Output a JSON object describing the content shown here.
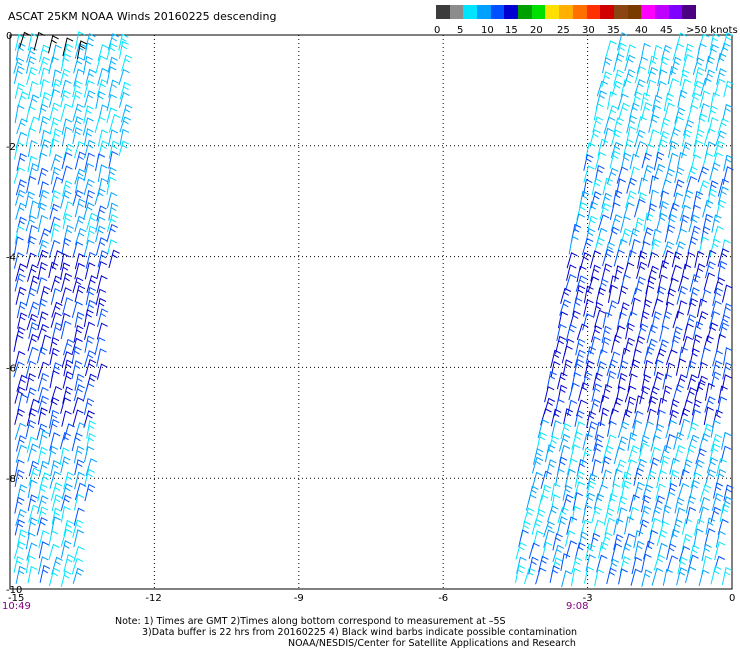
{
  "title": "ASCAT 25KM NOAA Winds 20160225 descending",
  "legend": {
    "colors": [
      "#3c3c3c",
      "#8c8c8c",
      "#00e5ff",
      "#00a0ff",
      "#0050ff",
      "#0000d0",
      "#00a000",
      "#00e000",
      "#ffe000",
      "#ffb000",
      "#ff7000",
      "#ff3000",
      "#d00000",
      "#8b4513",
      "#7a3b00",
      "#ff00ff",
      "#c000ff",
      "#8000ff",
      "#4b0082"
    ],
    "labels": [
      "0",
      "5",
      "10",
      "15",
      "20",
      "25",
      "30",
      "35",
      "40",
      "45",
      ">50 knots"
    ]
  },
  "axes": {
    "x_ticks": [
      "-15",
      "-12",
      "-9",
      "-6",
      "-3",
      "0"
    ],
    "y_ticks": [
      "0",
      "-2",
      "-4",
      "-6",
      "-8",
      "-10"
    ],
    "xlim": [
      -15,
      0
    ],
    "ylim": [
      -10,
      0
    ],
    "grid": true
  },
  "times": {
    "left": "10:49",
    "right": "9:08"
  },
  "notes": {
    "line1": "Note: 1) Times are GMT 2)Times along bottom correspond to measurement at –5S",
    "line2": "3)Data buffer is 22 hrs from 20160225 4) Black wind barbs indicate possible contamination",
    "line3": "NOAA/NESDIS/Center for Satellite Applications and Research"
  },
  "swaths": [
    {
      "name": "west-swath",
      "top_lon": [
        -15,
        -12.4
      ],
      "bottom_lon": [
        -15,
        -13.6
      ]
    },
    {
      "name": "east-swath",
      "top_lon": [
        -2.7,
        0
      ],
      "bottom_lon": [
        -4.7,
        0
      ]
    }
  ]
}
